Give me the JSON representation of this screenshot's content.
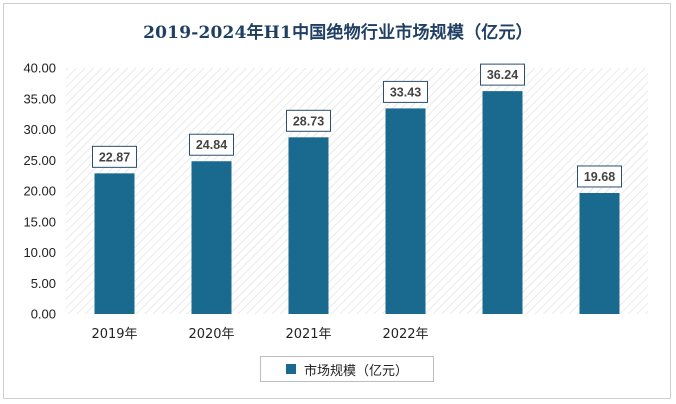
{
  "chart_data": {
    "type": "bar",
    "title": "2019-2024年H1中国绝物行业市场规模（亿元）",
    "categories": [
      "2019年",
      "2020年",
      "2021年",
      "2022年",
      "",
      ""
    ],
    "series": [
      {
        "name": "市场规模（亿元）",
        "values": [
          22.87,
          24.84,
          28.73,
          33.43,
          36.24,
          19.68
        ]
      }
    ],
    "data_labels": [
      "22.87",
      "24.84",
      "28.73",
      "33.43",
      "36.24",
      "19.68"
    ],
    "yticks": [
      "0.00",
      "5.00",
      "10.00",
      "15.00",
      "20.00",
      "25.00",
      "30.00",
      "35.00",
      "40.00"
    ],
    "ylim": [
      0,
      40
    ],
    "grid": false,
    "legend_position": "bottom",
    "colors": {
      "bar": "#1a6a8f",
      "title": "#1f3f63",
      "plot_hatch": "#dcdcdc"
    }
  }
}
